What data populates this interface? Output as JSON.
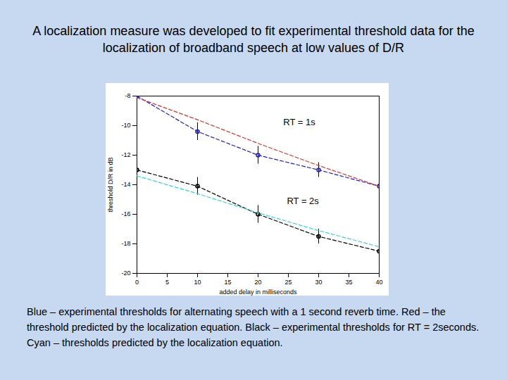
{
  "chart_data": {
    "type": "line",
    "title": "A localization measure was developed to fit experimental threshold data for the localization of broadband speech at low values of D/R",
    "caption": "Blue – experimental thresholds for alternating speech with a 1 second reverb time.  Red – the threshold predicted by the localization equation.  Black – experimental thresholds for RT = 2seconds.  Cyan – thresholds predicted by the localization equation.",
    "x_label": "added delay in milliseconds",
    "y_label": "threshold D/R in dB",
    "x": [
      0,
      10,
      20,
      30,
      40
    ],
    "xlim": [
      0,
      40
    ],
    "xticks": [
      0,
      5,
      10,
      15,
      20,
      25,
      30,
      35,
      40
    ],
    "ylim": [
      -20,
      -8
    ],
    "yticks": [
      -20,
      -18,
      -16,
      -14,
      -12,
      -10,
      -8
    ],
    "grid": false,
    "series": [
      {
        "color": "#2020c0",
        "values": [
          -8.0,
          -10.4,
          -12.0,
          -13.0,
          -14.1
        ],
        "errors": [
          0.6,
          0.6,
          0.6,
          0.5,
          0.5
        ],
        "marker": "circle",
        "line_style": "dashed"
      },
      {
        "color": "#e03030",
        "values": [
          -8.1,
          -9.6,
          -11.2,
          -12.7,
          -14.1
        ],
        "line_style": "dashed"
      },
      {
        "color": "#000000",
        "values": [
          -13.0,
          -14.1,
          -16.0,
          -17.5,
          -18.5
        ],
        "errors": [
          0.6,
          0.6,
          0.6,
          0.5,
          0.5
        ],
        "marker": "circle",
        "line_style": "dashed"
      },
      {
        "color": "#30d8d8",
        "values": [
          -13.4,
          -14.6,
          -15.9,
          -17.1,
          -18.2
        ],
        "line_style": "dashed"
      }
    ],
    "annotations": [
      {
        "text": "RT = 1s",
        "x": 26.8,
        "y": -9.8
      },
      {
        "text": "RT = 2s",
        "x": 27.4,
        "y": -15.1
      }
    ]
  }
}
